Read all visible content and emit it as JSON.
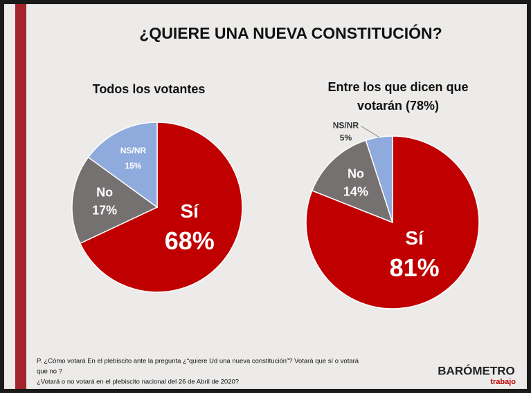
{
  "title": "¿QUIERE UNA NUEVA CONSTITUCIÓN?",
  "footnote": [
    "P. ¿Cómo votará En el plebiscito ante la pregunta ¿“quiere Ud una nueva constitución”? Votará que sí o votará",
    "que no ?",
    "¿Votará o no votará en el plebiscito nacional del 26 de Abril de 2020?"
  ],
  "logo": {
    "name": "BARÓMETRO",
    "sub": "trabajo"
  },
  "chart_data": [
    {
      "type": "pie",
      "title": [
        "Todos los votantes"
      ],
      "categories": [
        "Sí",
        "No",
        "NS/NR"
      ],
      "values": [
        68,
        17,
        15
      ],
      "value_labels": [
        "68%",
        "17%",
        "15%"
      ],
      "colors": [
        "#c00000",
        "#767171",
        "#8faadc"
      ]
    },
    {
      "type": "pie",
      "title": [
        "Entre los que dicen que",
        "votarán (78%)"
      ],
      "categories": [
        "Sí",
        "No",
        "NS/NR"
      ],
      "values": [
        81,
        14,
        5
      ],
      "value_labels": [
        "81%",
        "14%",
        "5%"
      ],
      "colors": [
        "#c00000",
        "#767171",
        "#8faadc"
      ]
    }
  ]
}
